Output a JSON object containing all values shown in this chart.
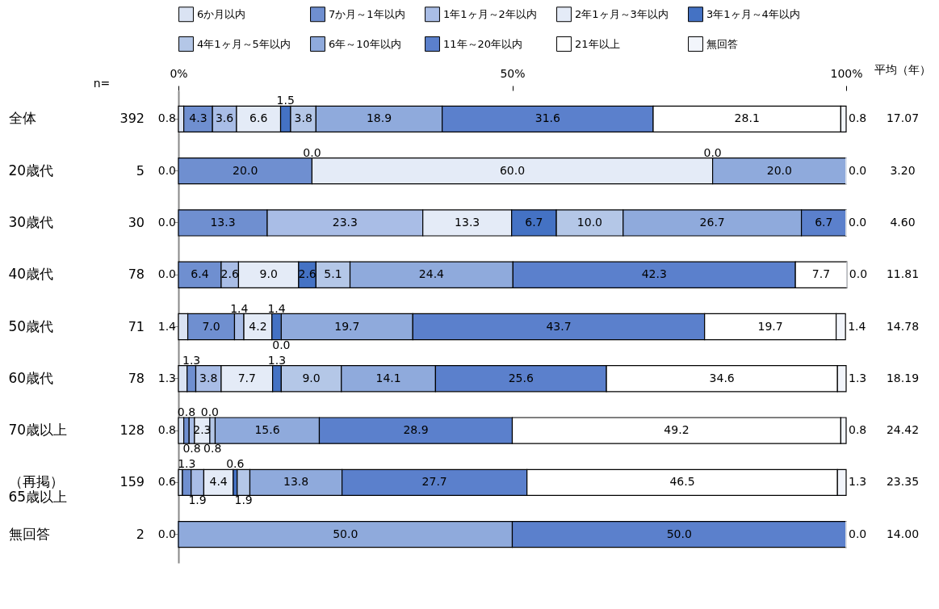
{
  "chart_data": {
    "type": "bar",
    "orientation": "horizontal",
    "stacked": true,
    "legend": "top",
    "categories": [
      "全体",
      "20歳代",
      "30歳代",
      "40歳代",
      "50歳代",
      "60歳代",
      "70歳以上",
      "（再掲）\n65歳以上",
      "無回答"
    ],
    "xlim": [
      0,
      100
    ],
    "xticks": [
      {
        "value": 0,
        "label": "0%"
      },
      {
        "value": 50,
        "label": "50%"
      },
      {
        "value": 100,
        "label": "100%"
      }
    ],
    "series": [
      {
        "name": "6か月以内",
        "color": "#dae3f3",
        "values": [
          0.8,
          0,
          0,
          0,
          1.4,
          1.3,
          0.8,
          0.6,
          0
        ],
        "value_labels": [
          "0.8",
          "0.0",
          "0.0",
          "0.0",
          "1.4",
          "1.3",
          "0.8",
          "0.6",
          "0.0"
        ]
      },
      {
        "name": "7か月～1年以内",
        "color": "#6f8fd0",
        "values": [
          4.3,
          20.0,
          13.3,
          6.4,
          7.0,
          1.3,
          0.8,
          1.3,
          0
        ],
        "value_labels": [
          "4.3",
          "20.0",
          "13.3",
          "6.4",
          "7.0",
          "1.3",
          "0.8",
          "1.3",
          null
        ]
      },
      {
        "name": "1年1ヶ月～2年以内",
        "color": "#a9bde6",
        "values": [
          3.6,
          0,
          23.3,
          2.6,
          1.4,
          3.8,
          0.8,
          1.9,
          0
        ],
        "value_labels": [
          "3.6",
          "0.0",
          "23.3",
          "2.6",
          "1.4",
          "3.8",
          "0.8",
          "1.9",
          null
        ]
      },
      {
        "name": "2年1ヶ月～3年以内",
        "color": "#e4ebf7",
        "values": [
          6.6,
          60.0,
          13.3,
          9.0,
          4.2,
          7.7,
          2.3,
          4.4,
          0
        ],
        "value_labels": [
          "6.6",
          "60.0",
          "13.3",
          "9.0",
          "4.2",
          "7.7",
          "2.3",
          "4.4",
          null
        ]
      },
      {
        "name": "3年1ヶ月～4年以内",
        "color": "#4472c4",
        "values": [
          1.5,
          0,
          6.7,
          2.6,
          1.4,
          1.3,
          0.0,
          0.6,
          0
        ],
        "value_labels": [
          "1.5",
          "0.0",
          "6.7",
          "2.6",
          "1.4",
          "1.3",
          "0.0",
          "0.6",
          null
        ]
      },
      {
        "name": "4年1ヶ月～5年以内",
        "color": "#b4c7e7",
        "values": [
          3.8,
          0,
          10.0,
          5.1,
          0.0,
          9.0,
          0.8,
          1.9,
          0
        ],
        "value_labels": [
          "3.8",
          null,
          "10.0",
          "5.1",
          "0.0",
          "9.0",
          "0.8",
          "1.9",
          null
        ]
      },
      {
        "name": "6年～10年以内",
        "color": "#8faadc",
        "values": [
          18.9,
          20.0,
          26.7,
          24.4,
          19.7,
          14.1,
          15.6,
          13.8,
          50.0
        ],
        "value_labels": [
          "18.9",
          "20.0",
          "26.7",
          "24.4",
          "19.7",
          "14.1",
          "15.6",
          "13.8",
          "50.0"
        ]
      },
      {
        "name": "11年～20年以内",
        "color": "#5b80cc",
        "values": [
          31.6,
          0,
          6.7,
          42.3,
          43.7,
          25.6,
          28.9,
          27.7,
          50.0
        ],
        "value_labels": [
          "31.6",
          null,
          "6.7",
          "42.3",
          "43.7",
          "25.6",
          "28.9",
          "27.7",
          "50.0"
        ]
      },
      {
        "name": "21年以上",
        "color": "#ffffff",
        "values": [
          28.1,
          0,
          0,
          7.7,
          19.7,
          34.6,
          49.2,
          46.5,
          0
        ],
        "value_labels": [
          "28.1",
          null,
          null,
          "7.7",
          "19.7",
          "34.6",
          "49.2",
          "46.5",
          null
        ]
      },
      {
        "name": "無回答",
        "color": "#f2f5fb",
        "values": [
          0.8,
          0,
          0,
          0,
          1.4,
          1.3,
          0.8,
          1.3,
          0
        ],
        "value_labels": [
          "0.8",
          "0.0",
          "0.0",
          "0.0",
          "1.4",
          "1.3",
          "0.8",
          "1.3",
          "0.0"
        ]
      }
    ],
    "annotations": [
      "n=",
      "392",
      "5",
      "30",
      "78",
      "71",
      "78",
      "128",
      "159",
      "2",
      "平均（年）",
      "17.07",
      "3.20",
      "4.60",
      "11.81",
      "14.78",
      "18.19",
      "24.42",
      "23.35",
      "14.00"
    ]
  }
}
